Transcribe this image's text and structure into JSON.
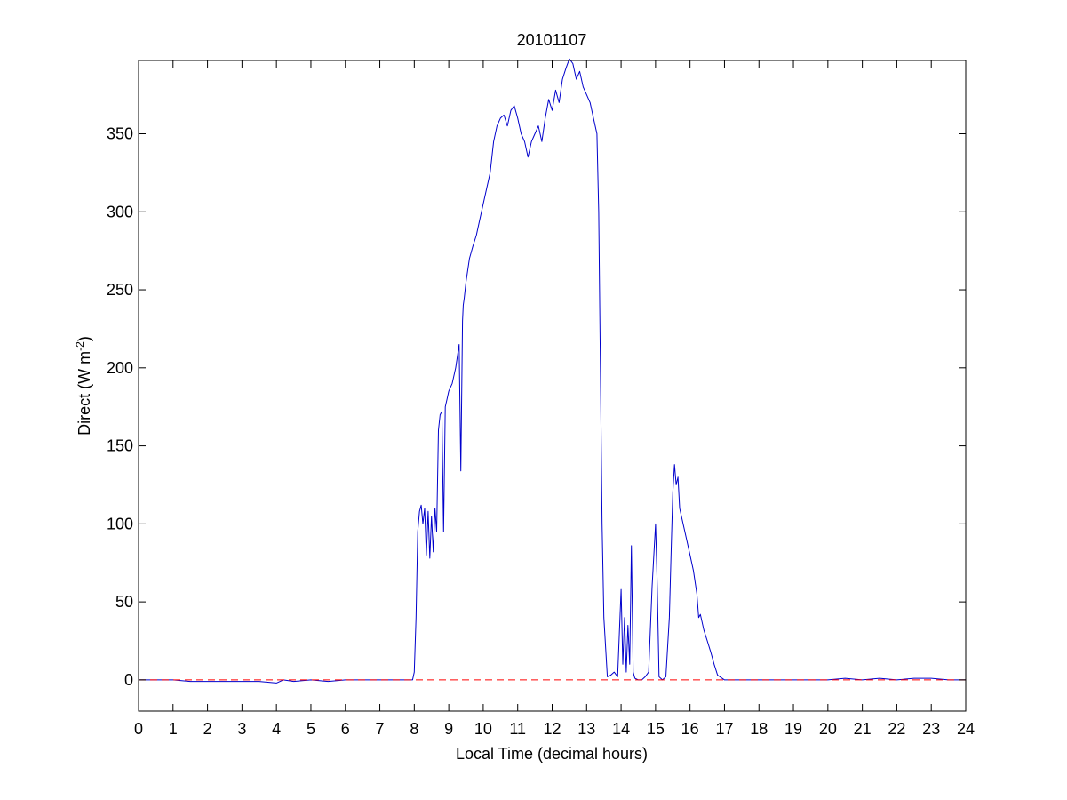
{
  "chart_data": {
    "type": "line",
    "title": "20101107",
    "xlabel": "Local Time (decimal hours)",
    "ylabel_main": "Direct (W m",
    "ylabel_sup": "-2",
    "ylabel_close": ")",
    "xlim": [
      0,
      24
    ],
    "ylim": [
      -20,
      397
    ],
    "xticks": [
      0,
      1,
      2,
      3,
      4,
      5,
      6,
      7,
      8,
      9,
      10,
      11,
      12,
      13,
      14,
      15,
      16,
      17,
      18,
      19,
      20,
      21,
      22,
      23,
      24
    ],
    "yticks": [
      0,
      50,
      100,
      150,
      200,
      250,
      300,
      350
    ],
    "grid": false,
    "series": [
      {
        "color": "#0000cc",
        "style": "solid",
        "x": [
          0,
          0.5,
          1.0,
          1.5,
          2.0,
          2.5,
          3.0,
          3.5,
          4.0,
          4.2,
          4.5,
          5.0,
          5.5,
          6.0,
          6.5,
          7.0,
          7.5,
          7.95,
          8.0,
          8.05,
          8.1,
          8.15,
          8.2,
          8.25,
          8.3,
          8.35,
          8.4,
          8.45,
          8.5,
          8.55,
          8.6,
          8.65,
          8.7,
          8.75,
          8.8,
          8.85,
          8.9,
          8.95,
          9.0,
          9.1,
          9.2,
          9.3,
          9.35,
          9.4,
          9.42,
          9.45,
          9.5,
          9.6,
          9.7,
          9.8,
          9.9,
          10.0,
          10.1,
          10.2,
          10.3,
          10.4,
          10.5,
          10.6,
          10.7,
          10.8,
          10.9,
          11.0,
          11.1,
          11.2,
          11.3,
          11.4,
          11.5,
          11.6,
          11.7,
          11.8,
          11.9,
          12.0,
          12.1,
          12.2,
          12.3,
          12.4,
          12.5,
          12.6,
          12.7,
          12.8,
          12.9,
          13.0,
          13.1,
          13.2,
          13.3,
          13.35,
          13.4,
          13.45,
          13.5,
          13.6,
          13.7,
          13.8,
          13.9,
          14.0,
          14.05,
          14.1,
          14.15,
          14.2,
          14.25,
          14.3,
          14.35,
          14.4,
          14.5,
          14.6,
          14.7,
          14.8,
          14.9,
          15.0,
          15.05,
          15.1,
          15.2,
          15.3,
          15.4,
          15.45,
          15.5,
          15.55,
          15.6,
          15.65,
          15.7,
          15.8,
          15.9,
          16.0,
          16.1,
          16.2,
          16.25,
          16.3,
          16.4,
          16.5,
          16.6,
          16.7,
          16.8,
          17.0,
          18.0,
          19.0,
          20.0,
          20.5,
          21.0,
          21.5,
          22.0,
          22.5,
          23.0,
          23.5,
          24.0
        ],
        "y": [
          0,
          0,
          0,
          -1,
          -1,
          -1,
          -1,
          -1,
          -2,
          0,
          -1,
          0,
          -1,
          0,
          0,
          0,
          0,
          0,
          5,
          40,
          95,
          108,
          112,
          100,
          110,
          80,
          108,
          78,
          105,
          82,
          110,
          95,
          160,
          170,
          172,
          95,
          175,
          180,
          185,
          190,
          200,
          215,
          134,
          230,
          240,
          245,
          255,
          270,
          278,
          285,
          295,
          305,
          315,
          325,
          345,
          355,
          360,
          362,
          355,
          365,
          368,
          360,
          350,
          345,
          335,
          345,
          350,
          355,
          345,
          360,
          372,
          365,
          378,
          370,
          385,
          392,
          398,
          395,
          385,
          390,
          380,
          375,
          370,
          360,
          350,
          300,
          200,
          100,
          40,
          2,
          3,
          5,
          2,
          58,
          10,
          40,
          5,
          35,
          10,
          86,
          5,
          1,
          0,
          0,
          2,
          5,
          60,
          100,
          60,
          2,
          0,
          2,
          40,
          80,
          120,
          138,
          125,
          130,
          110,
          100,
          90,
          80,
          70,
          55,
          40,
          42,
          32,
          25,
          18,
          10,
          3,
          0,
          0,
          0,
          0,
          1,
          0,
          1,
          0,
          1,
          1,
          0,
          0
        ]
      },
      {
        "color": "#ff0000",
        "style": "dashed",
        "x": [
          0,
          24
        ],
        "y": [
          0,
          0
        ]
      }
    ]
  }
}
